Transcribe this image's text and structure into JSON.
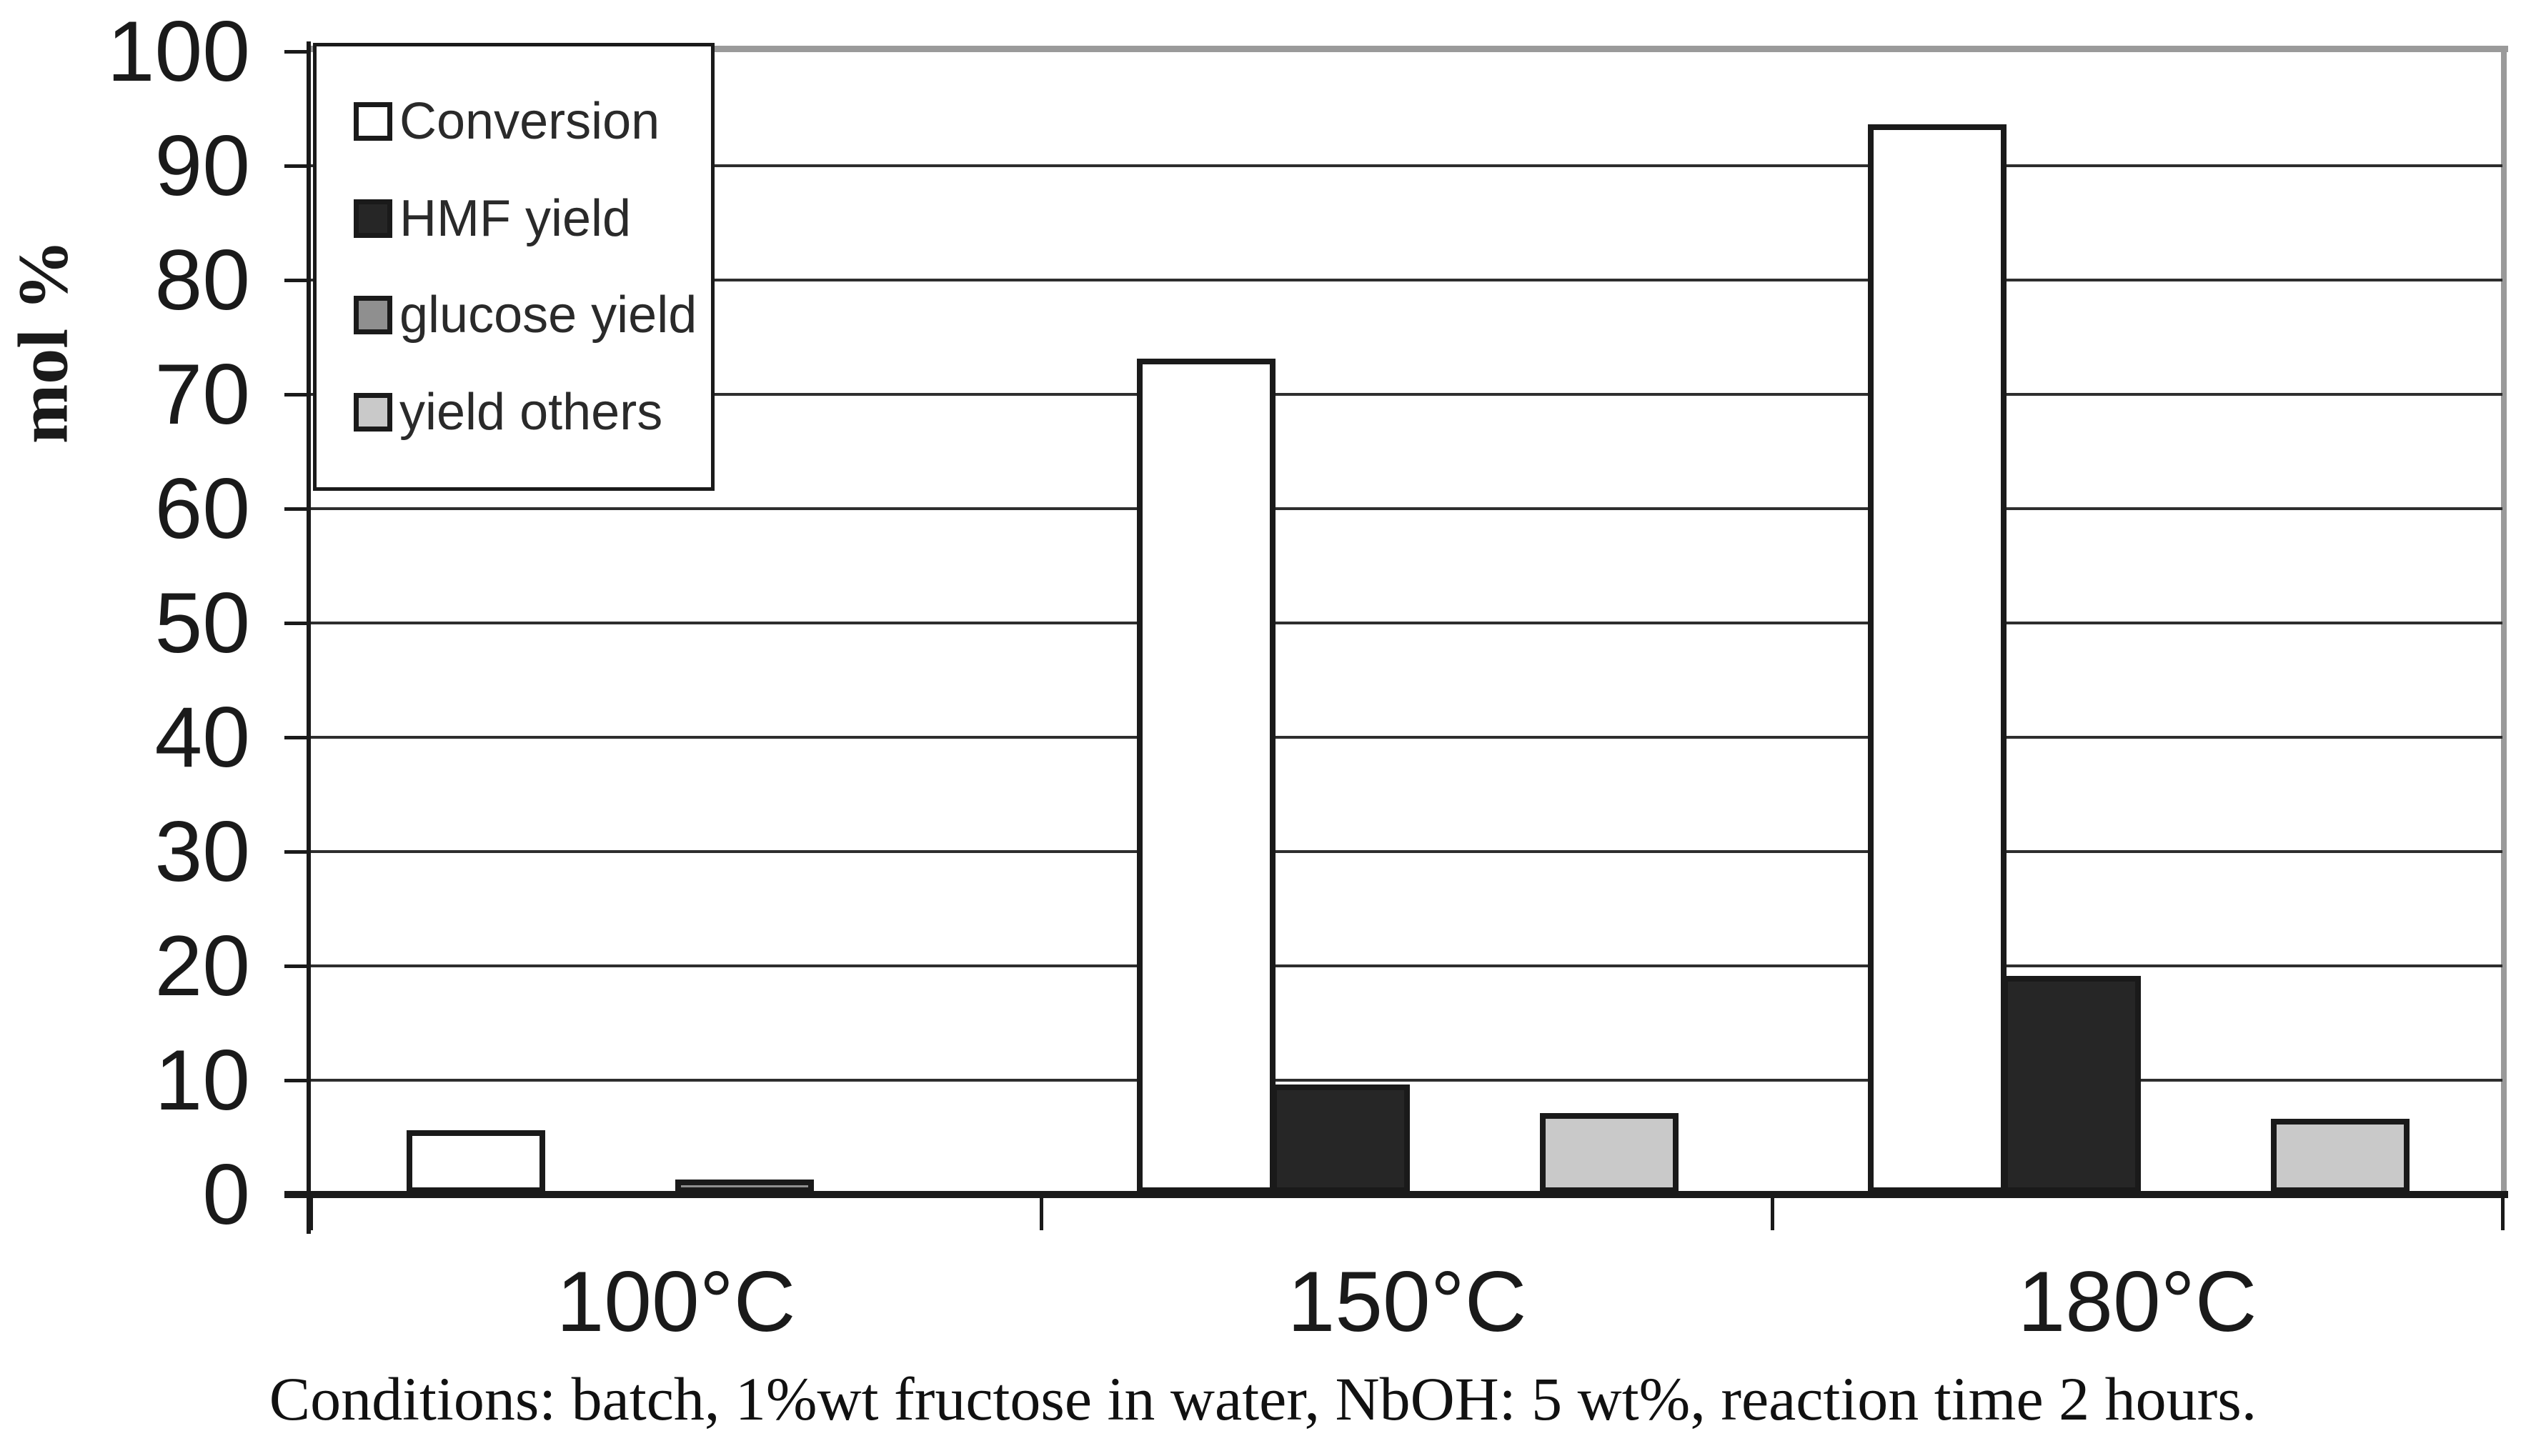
{
  "chart_data": {
    "type": "bar",
    "title": "",
    "ylabel": "mol %",
    "xlabel": "",
    "categories": [
      "100°C",
      "150°C",
      "180°C"
    ],
    "series": [
      {
        "name": "Conversion",
        "color": "#ffffff",
        "values": [
          5.5,
          73.0,
          93.5
        ]
      },
      {
        "name": "HMF yield",
        "color": "#262626",
        "values": [
          0.0,
          9.5,
          19.0
        ]
      },
      {
        "name": "glucose yield",
        "color": "#8f8f8f",
        "values": [
          1.2,
          0.0,
          0.0
        ]
      },
      {
        "name": "yield others",
        "color": "#c9c9c9",
        "values": [
          0.0,
          7.0,
          6.5
        ]
      }
    ],
    "ylim": [
      0,
      100
    ],
    "ytick_step": 10,
    "yticks": [
      "100",
      "90",
      "80",
      "70",
      "60",
      "50",
      "40",
      "30",
      "20",
      "10",
      "0"
    ],
    "grid": true,
    "legend_position": "top-left"
  },
  "caption": "Conditions: batch, 1%wt fructose in water, NbOH: 5 wt%, reaction time 2 hours."
}
